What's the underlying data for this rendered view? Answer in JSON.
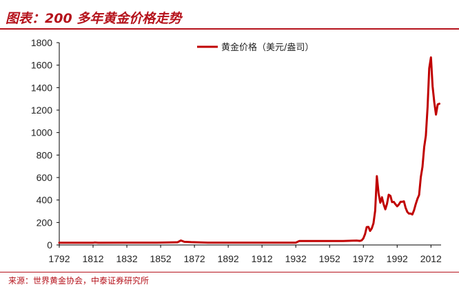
{
  "header": {
    "title": "图表：200 多年黄金价格走势"
  },
  "footer": {
    "source": "来源：世界黄金协会，中泰证券研究所"
  },
  "colors": {
    "accent": "#b5121b",
    "series": "#c00000"
  },
  "chart_data": {
    "type": "line",
    "title": "",
    "xlabel": "",
    "ylabel": "",
    "xlim": [
      1792,
      2018
    ],
    "ylim": [
      0,
      1800
    ],
    "x_ticks": [
      "1792",
      "1812",
      "1832",
      "1852",
      "1872",
      "1892",
      "1912",
      "1932",
      "1952",
      "1972",
      "1992",
      "2012"
    ],
    "y_ticks": [
      "0",
      "200",
      "400",
      "600",
      "800",
      "1000",
      "1200",
      "1400",
      "1600",
      "1800"
    ],
    "grid": false,
    "legend_position": "top-center",
    "series": [
      {
        "name": "黄金价格（美元/盎司）",
        "x": [
          1792,
          1812,
          1813,
          1815,
          1833,
          1850,
          1862,
          1864,
          1866,
          1870,
          1880,
          1900,
          1920,
          1932,
          1934,
          1940,
          1950,
          1960,
          1968,
          1970,
          1971,
          1972,
          1973,
          1974,
          1975,
          1976,
          1977,
          1978,
          1979,
          1980,
          1981,
          1982,
          1983,
          1984,
          1985,
          1986,
          1987,
          1988,
          1989,
          1990,
          1991,
          1992,
          1993,
          1994,
          1995,
          1996,
          1997,
          1998,
          1999,
          2000,
          2001,
          2002,
          2003,
          2004,
          2005,
          2006,
          2007,
          2008,
          2009,
          2010,
          2011,
          2012,
          2013,
          2014,
          2015,
          2016,
          2017
        ],
        "y": [
          19.39,
          19.39,
          22,
          19.39,
          20.67,
          20.67,
          24,
          40,
          28,
          25,
          20.67,
          20.67,
          20.67,
          20.67,
          35,
          35,
          35,
          35,
          39,
          36,
          41,
          58,
          97,
          159,
          161,
          125,
          148,
          193,
          307,
          612,
          460,
          376,
          424,
          361,
          317,
          368,
          447,
          437,
          381,
          383,
          362,
          344,
          360,
          384,
          384,
          388,
          331,
          294,
          279,
          279,
          271,
          310,
          363,
          410,
          445,
          604,
          695,
          872,
          972,
          1225,
          1572,
          1669,
          1411,
          1266,
          1160,
          1250,
          1257
        ]
      }
    ]
  }
}
